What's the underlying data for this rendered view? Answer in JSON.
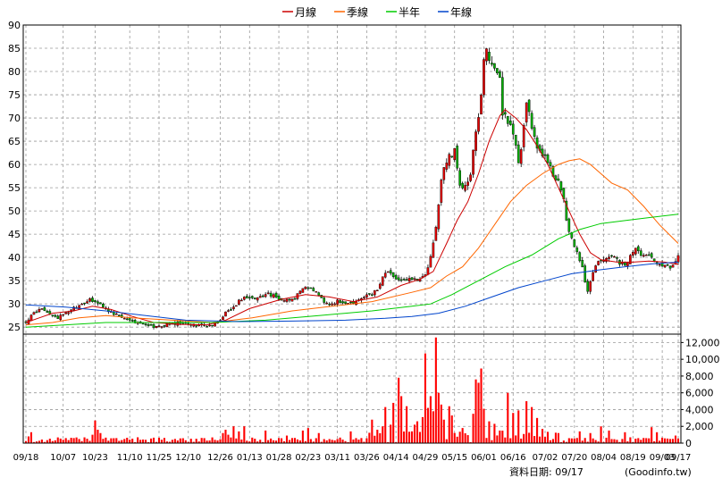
{
  "colors": {
    "ma_month": "#cc0000",
    "ma_quarter": "#ff6600",
    "ma_half": "#00cc00",
    "ma_year": "#0044cc",
    "candle_up": "#e60000",
    "candle_down": "#00b000",
    "volume": "#ff0000",
    "grid": "#9a9a9a",
    "axis": "#000000"
  },
  "chart_data": [
    {
      "type": "candlestick",
      "grid": true,
      "legend_position": "top-center",
      "legend": [
        {
          "key": "month",
          "label": "月線"
        },
        {
          "key": "quarter",
          "label": "季線"
        },
        {
          "key": "half",
          "label": "半年"
        },
        {
          "key": "year",
          "label": "年線"
        }
      ],
      "y_ticks": [
        90,
        85,
        80,
        75,
        70,
        65,
        60,
        55,
        50,
        45,
        40,
        35,
        30,
        25
      ],
      "ylim": [
        23.5,
        90
      ],
      "n_periods": 245,
      "x_ticks": [
        {
          "i": 0,
          "label": "09/18"
        },
        {
          "i": 14,
          "label": "10/07"
        },
        {
          "i": 26,
          "label": "10/23"
        },
        {
          "i": 39,
          "label": "11/10"
        },
        {
          "i": 50,
          "label": "11/25"
        },
        {
          "i": 61,
          "label": "12/10"
        },
        {
          "i": 73,
          "label": "12/26"
        },
        {
          "i": 84,
          "label": "01/13"
        },
        {
          "i": 95,
          "label": "01/28"
        },
        {
          "i": 106,
          "label": "02/23"
        },
        {
          "i": 117,
          "label": "03/11"
        },
        {
          "i": 128,
          "label": "03/26"
        },
        {
          "i": 139,
          "label": "04/14"
        },
        {
          "i": 150,
          "label": "04/29"
        },
        {
          "i": 161,
          "label": "05/15"
        },
        {
          "i": 172,
          "label": "06/01"
        },
        {
          "i": 183,
          "label": "06/16"
        },
        {
          "i": 195,
          "label": "07/02"
        },
        {
          "i": 206,
          "label": "07/20"
        },
        {
          "i": 217,
          "label": "08/04"
        },
        {
          "i": 228,
          "label": "08/19"
        },
        {
          "i": 239,
          "label": "09/03"
        },
        {
          "i": 245,
          "label": "09/17"
        }
      ],
      "price_anchors": [
        [
          0,
          26
        ],
        [
          3,
          28
        ],
        [
          6,
          29
        ],
        [
          9,
          28
        ],
        [
          12,
          27
        ],
        [
          15,
          28
        ],
        [
          18,
          29
        ],
        [
          21,
          30
        ],
        [
          24,
          31
        ],
        [
          27,
          30
        ],
        [
          30,
          29
        ],
        [
          33,
          28
        ],
        [
          36,
          27
        ],
        [
          39,
          26.5
        ],
        [
          42,
          26
        ],
        [
          45,
          25.5
        ],
        [
          48,
          25
        ],
        [
          51,
          25.2
        ],
        [
          54,
          25.5
        ],
        [
          57,
          26
        ],
        [
          60,
          26
        ],
        [
          63,
          25.5
        ],
        [
          66,
          25.3
        ],
        [
          69,
          25.2
        ],
        [
          72,
          26
        ],
        [
          75,
          28
        ],
        [
          78,
          29.5
        ],
        [
          81,
          31
        ],
        [
          84,
          31.5
        ],
        [
          87,
          31
        ],
        [
          90,
          32
        ],
        [
          93,
          32
        ],
        [
          96,
          31
        ],
        [
          99,
          30.5
        ],
        [
          102,
          32
        ],
        [
          105,
          34
        ],
        [
          108,
          33
        ],
        [
          111,
          31
        ],
        [
          114,
          30
        ],
        [
          117,
          30.5
        ],
        [
          120,
          30
        ],
        [
          123,
          30
        ],
        [
          126,
          31
        ],
        [
          129,
          32
        ],
        [
          132,
          33
        ],
        [
          135,
          37
        ],
        [
          138,
          36
        ],
        [
          141,
          35
        ],
        [
          144,
          35.5
        ],
        [
          147,
          35
        ],
        [
          150,
          36
        ],
        [
          152,
          40
        ],
        [
          154,
          46
        ],
        [
          156,
          57
        ],
        [
          158,
          61
        ],
        [
          161,
          63
        ],
        [
          163,
          56
        ],
        [
          165,
          55
        ],
        [
          167,
          58
        ],
        [
          169,
          67
        ],
        [
          171,
          75
        ],
        [
          172,
          82
        ],
        [
          173,
          85
        ],
        [
          174,
          82
        ],
        [
          176,
          80
        ],
        [
          178,
          78
        ],
        [
          179,
          71
        ],
        [
          180,
          70
        ],
        [
          182,
          68
        ],
        [
          184,
          64
        ],
        [
          185,
          60
        ],
        [
          186,
          64
        ],
        [
          188,
          73
        ],
        [
          190,
          68
        ],
        [
          192,
          64
        ],
        [
          194,
          62
        ],
        [
          196,
          61
        ],
        [
          198,
          58
        ],
        [
          200,
          56
        ],
        [
          202,
          52
        ],
        [
          203,
          48
        ],
        [
          205,
          44
        ],
        [
          207,
          41
        ],
        [
          209,
          38
        ],
        [
          210,
          35
        ],
        [
          211,
          33
        ],
        [
          212,
          34.5
        ],
        [
          213,
          37
        ],
        [
          215,
          39
        ],
        [
          217,
          40
        ],
        [
          219,
          40.5
        ],
        [
          221,
          40
        ],
        [
          223,
          39
        ],
        [
          225,
          38.5
        ],
        [
          227,
          40
        ],
        [
          229,
          42
        ],
        [
          231,
          40
        ],
        [
          233,
          41
        ],
        [
          235,
          40
        ],
        [
          237,
          39
        ],
        [
          239,
          38.5
        ],
        [
          241,
          38
        ],
        [
          243,
          38
        ],
        [
          244,
          39
        ],
        [
          245,
          40.5
        ]
      ],
      "ma": {
        "month": [
          [
            0,
            26
          ],
          [
            5,
            27
          ],
          [
            10,
            28
          ],
          [
            18,
            28.5
          ],
          [
            25,
            29.5
          ],
          [
            32,
            28.8
          ],
          [
            40,
            27.3
          ],
          [
            48,
            26
          ],
          [
            58,
            25.6
          ],
          [
            68,
            25.5
          ],
          [
            75,
            26.5
          ],
          [
            84,
            29
          ],
          [
            96,
            31
          ],
          [
            105,
            32
          ],
          [
            114,
            31.5
          ],
          [
            123,
            30.5
          ],
          [
            132,
            31.5
          ],
          [
            141,
            34
          ],
          [
            148,
            35.3
          ],
          [
            153,
            37
          ],
          [
            158,
            43
          ],
          [
            162,
            48
          ],
          [
            166,
            52
          ],
          [
            170,
            58
          ],
          [
            174,
            65
          ],
          [
            178,
            70.5
          ],
          [
            180,
            71.8
          ],
          [
            184,
            70
          ],
          [
            188,
            67.5
          ],
          [
            192,
            64
          ],
          [
            196,
            60
          ],
          [
            200,
            55
          ],
          [
            204,
            50
          ],
          [
            208,
            45
          ],
          [
            212,
            41
          ],
          [
            216,
            39.5
          ],
          [
            222,
            39
          ],
          [
            228,
            39
          ],
          [
            234,
            39.2
          ],
          [
            240,
            39
          ],
          [
            245,
            38.5
          ]
        ],
        "quarter": [
          [
            0,
            25.5
          ],
          [
            10,
            26
          ],
          [
            20,
            27
          ],
          [
            30,
            27.5
          ],
          [
            40,
            27
          ],
          [
            55,
            26.5
          ],
          [
            70,
            26
          ],
          [
            85,
            27
          ],
          [
            100,
            28.5
          ],
          [
            115,
            29.5
          ],
          [
            130,
            30.5
          ],
          [
            145,
            32.5
          ],
          [
            152,
            33.5
          ],
          [
            158,
            36
          ],
          [
            164,
            38
          ],
          [
            170,
            42
          ],
          [
            176,
            47
          ],
          [
            182,
            52
          ],
          [
            188,
            55.5
          ],
          [
            194,
            58
          ],
          [
            200,
            60
          ],
          [
            204,
            60.8
          ],
          [
            208,
            61.2
          ],
          [
            212,
            60
          ],
          [
            216,
            58
          ],
          [
            220,
            56
          ],
          [
            226,
            54.5
          ],
          [
            232,
            51
          ],
          [
            238,
            47
          ],
          [
            245,
            43
          ]
        ],
        "half": [
          [
            0,
            25
          ],
          [
            15,
            25.5
          ],
          [
            30,
            26
          ],
          [
            50,
            26
          ],
          [
            70,
            26
          ],
          [
            90,
            26.5
          ],
          [
            110,
            27.5
          ],
          [
            130,
            28.5
          ],
          [
            145,
            29.5
          ],
          [
            152,
            30
          ],
          [
            160,
            32
          ],
          [
            170,
            35
          ],
          [
            180,
            38
          ],
          [
            190,
            40.5
          ],
          [
            200,
            44
          ],
          [
            208,
            46
          ],
          [
            216,
            47.3
          ],
          [
            226,
            48
          ],
          [
            236,
            48.7
          ],
          [
            245,
            49.3
          ]
        ],
        "year": [
          [
            0,
            29.8
          ],
          [
            15,
            29.3
          ],
          [
            30,
            28.5
          ],
          [
            45,
            27.5
          ],
          [
            60,
            26.5
          ],
          [
            80,
            26.2
          ],
          [
            100,
            26.3
          ],
          [
            120,
            26.5
          ],
          [
            135,
            26.9
          ],
          [
            145,
            27.3
          ],
          [
            155,
            28
          ],
          [
            165,
            29.5
          ],
          [
            175,
            31.5
          ],
          [
            185,
            33.5
          ],
          [
            195,
            35
          ],
          [
            205,
            36.5
          ],
          [
            215,
            37.3
          ],
          [
            225,
            38
          ],
          [
            235,
            38.6
          ],
          [
            245,
            39
          ]
        ]
      }
    },
    {
      "type": "bar",
      "unit": "volume",
      "y_ticks": [
        "12,000",
        "10,000",
        "8,000",
        "6,000",
        "4,000",
        "2,000",
        "0"
      ],
      "y_values": [
        12000,
        10000,
        8000,
        6000,
        4000,
        2000,
        0
      ],
      "ylim": [
        0,
        13000
      ],
      "spikes": [
        [
          1,
          800
        ],
        [
          2,
          1300
        ],
        [
          14,
          400
        ],
        [
          25,
          1000
        ],
        [
          26,
          2700
        ],
        [
          27,
          1600
        ],
        [
          28,
          1200
        ],
        [
          56,
          500
        ],
        [
          74,
          1200
        ],
        [
          75,
          1600
        ],
        [
          76,
          1000
        ],
        [
          78,
          2000
        ],
        [
          80,
          1400
        ],
        [
          82,
          2000
        ],
        [
          90,
          1500
        ],
        [
          98,
          900
        ],
        [
          104,
          1500
        ],
        [
          106,
          1800
        ],
        [
          110,
          1200
        ],
        [
          122,
          1400
        ],
        [
          130,
          2800
        ],
        [
          132,
          1600
        ],
        [
          134,
          2000
        ],
        [
          135,
          4300
        ],
        [
          137,
          2200
        ],
        [
          138,
          4800
        ],
        [
          140,
          7800
        ],
        [
          141,
          5600
        ],
        [
          143,
          4400
        ],
        [
          146,
          2200
        ],
        [
          147,
          2600
        ],
        [
          149,
          3100
        ],
        [
          150,
          10700
        ],
        [
          151,
          4200
        ],
        [
          152,
          5600
        ],
        [
          153,
          3800
        ],
        [
          154,
          12600
        ],
        [
          155,
          6000
        ],
        [
          156,
          4600
        ],
        [
          157,
          2800
        ],
        [
          159,
          4400
        ],
        [
          160,
          3300
        ],
        [
          164,
          1800
        ],
        [
          168,
          3500
        ],
        [
          169,
          7600
        ],
        [
          170,
          7200
        ],
        [
          171,
          8900
        ],
        [
          172,
          4100
        ],
        [
          174,
          2600
        ],
        [
          176,
          2300
        ],
        [
          178,
          1500
        ],
        [
          181,
          6000
        ],
        [
          183,
          3600
        ],
        [
          185,
          3900
        ],
        [
          188,
          5000
        ],
        [
          190,
          4300
        ],
        [
          192,
          3000
        ],
        [
          194,
          1700
        ],
        [
          200,
          1200
        ],
        [
          208,
          1400
        ],
        [
          212,
          1200
        ],
        [
          216,
          2000
        ],
        [
          219,
          1500
        ],
        [
          225,
          1300
        ],
        [
          235,
          1900
        ],
        [
          237,
          1300
        ],
        [
          244,
          900
        ]
      ]
    }
  ],
  "footer": {
    "date_caption": "資料日期: 09/17",
    "source": "(Goodinfo.tw)"
  }
}
